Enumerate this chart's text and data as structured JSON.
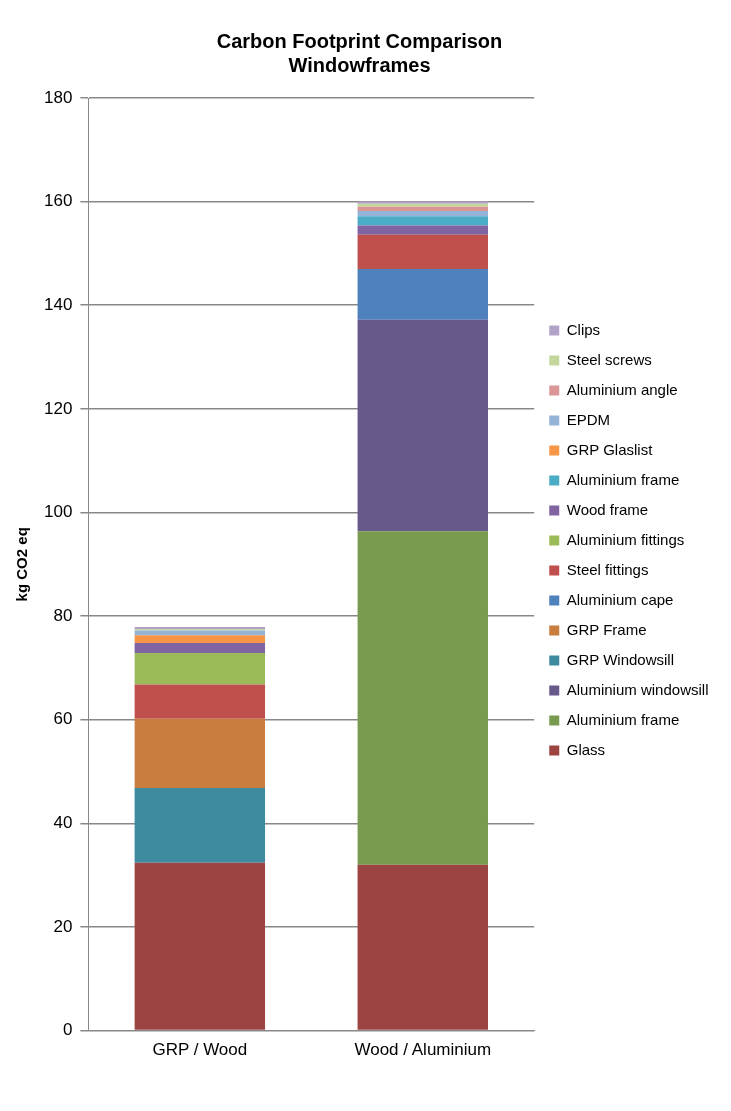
{
  "chart_data": {
    "type": "bar",
    "stacked": true,
    "title": "Carbon Footprint Comparison\nWindowframes",
    "ylabel": "kg CO2 eq",
    "categories": [
      "GRP / Wood",
      "Wood / Aluminium"
    ],
    "ylim": [
      0,
      180
    ],
    "yticks": [
      0,
      20,
      40,
      60,
      80,
      100,
      120,
      140,
      160,
      180
    ],
    "grid": "y",
    "legend": "right",
    "series": [
      {
        "name": "Glass",
        "color": "#9b4441",
        "values": [
          32.4,
          32.0
        ]
      },
      {
        "name": "Aluminium frame",
        "color": "#799b4f",
        "values": [
          0,
          64.4
        ]
      },
      {
        "name": "Aluminium windowsill",
        "color": "#675a8a",
        "values": [
          0,
          40.8
        ]
      },
      {
        "name": "GRP Windowsill",
        "color": "#3e8ba0",
        "values": [
          14.4,
          0
        ]
      },
      {
        "name": "GRP Frame",
        "color": "#c97d3f",
        "values": [
          13.4,
          0
        ]
      },
      {
        "name": "Aluminium cape",
        "color": "#4f81bd",
        "values": [
          0,
          9.8
        ]
      },
      {
        "name": "Steel fittings",
        "color": "#c0504d",
        "values": [
          6.6,
          6.6
        ]
      },
      {
        "name": "Aluminium fittings",
        "color": "#9bbb59",
        "values": [
          6.1,
          0
        ]
      },
      {
        "name": "Wood frame",
        "color": "#8064a2",
        "values": [
          1.9,
          1.8
        ]
      },
      {
        "name": "Aluminium frame",
        "color": "#4bacc6",
        "values": [
          0,
          1.8
        ]
      },
      {
        "name": "GRP Glaslist",
        "color": "#f79646",
        "values": [
          1.5,
          0
        ]
      },
      {
        "name": "EPDM",
        "color": "#95b3d7",
        "values": [
          0.9,
          1.0
        ]
      },
      {
        "name": "Aluminium angle",
        "color": "#d99694",
        "values": [
          0,
          0.8
        ]
      },
      {
        "name": "Steel screws",
        "color": "#c3d69b",
        "values": [
          0.3,
          0.6
        ]
      },
      {
        "name": "Clips",
        "color": "#b3a2c7",
        "values": [
          0.4,
          0.4
        ]
      }
    ]
  }
}
